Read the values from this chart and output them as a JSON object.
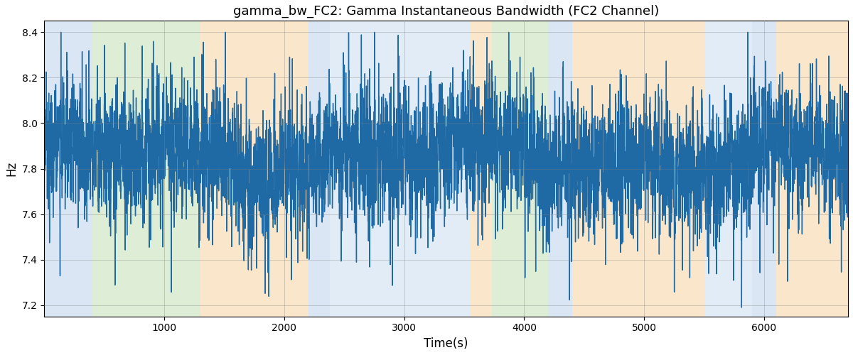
{
  "title": "gamma_bw_FC2: Gamma Instantaneous Bandwidth (FC2 Channel)",
  "xlabel": "Time(s)",
  "ylabel": "Hz",
  "xlim": [
    0,
    6700
  ],
  "ylim": [
    7.15,
    8.45
  ],
  "yticks": [
    7.2,
    7.4,
    7.6,
    7.8,
    8.0,
    8.2,
    8.4
  ],
  "xticks": [
    1000,
    2000,
    3000,
    4000,
    5000,
    6000
  ],
  "line_color": "#1f6aa5",
  "line_width": 1.0,
  "bg_regions": [
    {
      "xmin": 0,
      "xmax": 200,
      "color": "#adc9e8",
      "alpha": 0.45
    },
    {
      "xmin": 200,
      "xmax": 400,
      "color": "#adc9e8",
      "alpha": 0.45
    },
    {
      "xmin": 400,
      "xmax": 1300,
      "color": "#b5d9a5",
      "alpha": 0.45
    },
    {
      "xmin": 1300,
      "xmax": 2200,
      "color": "#f5c88a",
      "alpha": 0.45
    },
    {
      "xmin": 2200,
      "xmax": 2380,
      "color": "#adc9e8",
      "alpha": 0.45
    },
    {
      "xmin": 2380,
      "xmax": 2680,
      "color": "#adc9e8",
      "alpha": 0.35
    },
    {
      "xmin": 2680,
      "xmax": 3550,
      "color": "#adc9e8",
      "alpha": 0.35
    },
    {
      "xmin": 3550,
      "xmax": 3730,
      "color": "#f5c88a",
      "alpha": 0.45
    },
    {
      "xmin": 3730,
      "xmax": 4200,
      "color": "#b5d9a5",
      "alpha": 0.45
    },
    {
      "xmin": 4200,
      "xmax": 4400,
      "color": "#adc9e8",
      "alpha": 0.45
    },
    {
      "xmin": 4400,
      "xmax": 4560,
      "color": "#f5c88a",
      "alpha": 0.45
    },
    {
      "xmin": 4560,
      "xmax": 5500,
      "color": "#f5c88a",
      "alpha": 0.45
    },
    {
      "xmin": 5500,
      "xmax": 5900,
      "color": "#adc9e8",
      "alpha": 0.35
    },
    {
      "xmin": 5900,
      "xmax": 6100,
      "color": "#adc9e8",
      "alpha": 0.45
    },
    {
      "xmin": 6100,
      "xmax": 6700,
      "color": "#f5c88a",
      "alpha": 0.45
    }
  ],
  "n_points": 6700,
  "seed": 7
}
